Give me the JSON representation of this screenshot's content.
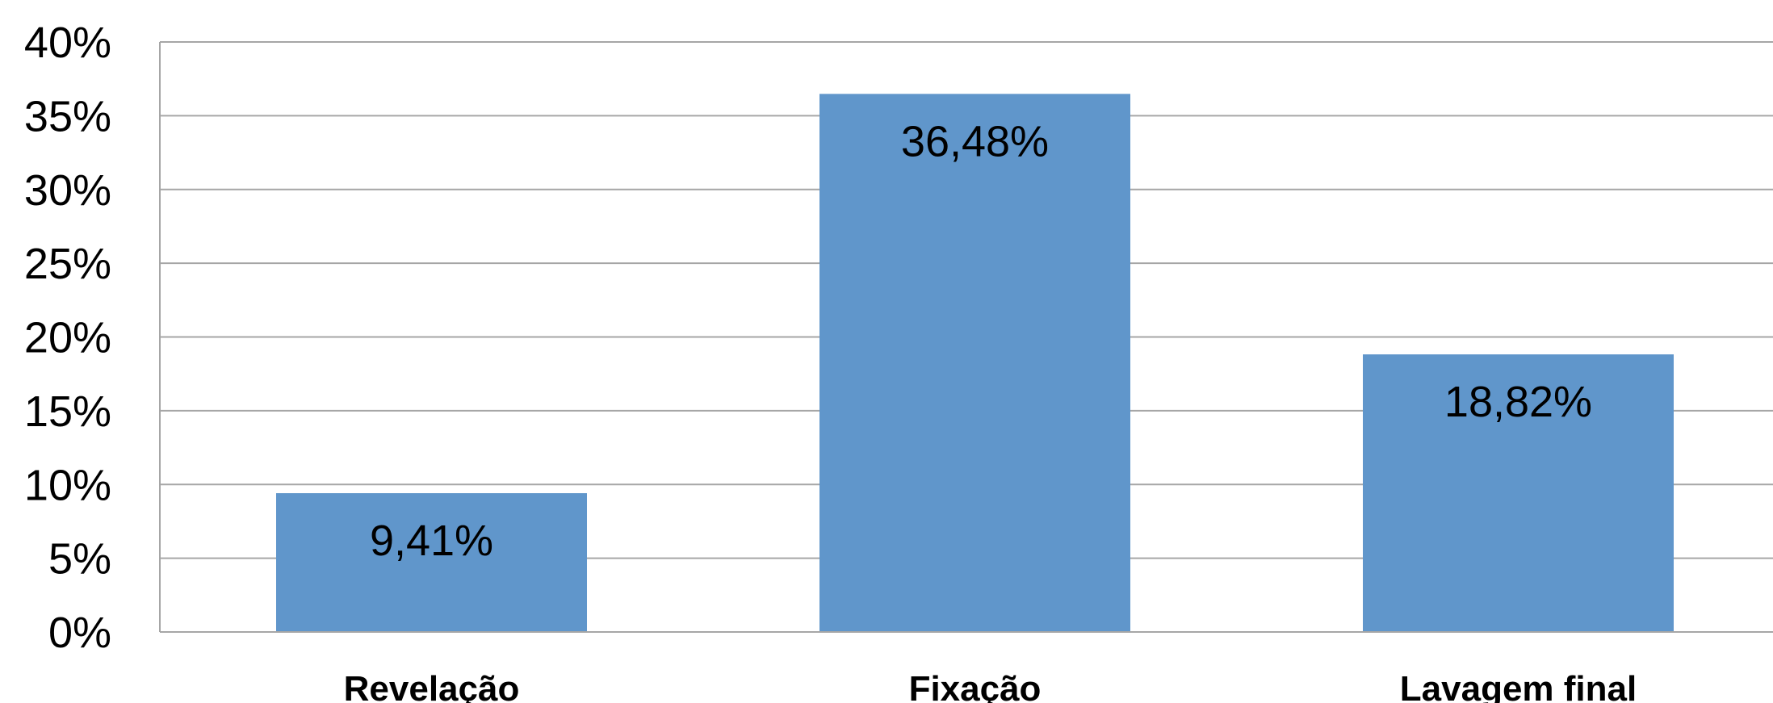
{
  "chart_data": {
    "type": "bar",
    "categories": [
      "Revelação",
      "Fixação",
      "Lavagem final"
    ],
    "values": [
      9.41,
      36.48,
      18.82
    ],
    "data_labels": [
      "9,41%",
      "36,48%",
      "18,82%"
    ],
    "ylim": [
      0,
      40
    ],
    "yticks": [
      0,
      5,
      10,
      15,
      20,
      25,
      30,
      35,
      40
    ],
    "ytick_labels": [
      "0%",
      "5%",
      "10%",
      "15%",
      "20%",
      "25%",
      "30%",
      "35%",
      "40%"
    ],
    "grid": true,
    "bar_color": "#6096CB",
    "grid_color": "#A6A6A6"
  }
}
